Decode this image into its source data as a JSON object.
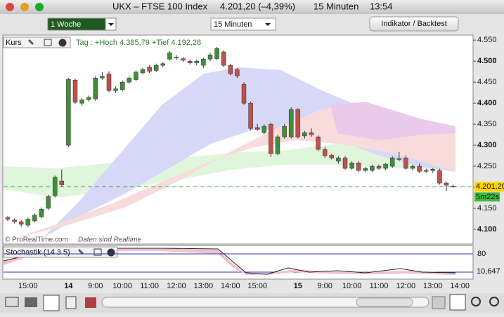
{
  "window": {
    "title": "UKX – FTSE 100 Index",
    "quote": "4.201,20 (–4,39%)",
    "interval": "15 Minuten",
    "time": "13:54"
  },
  "toolbar": {
    "period": "1 Woche",
    "interval": "15 Minuten",
    "button": "Indikator / Backtest"
  },
  "chart": {
    "type": "candlestick",
    "panel": "Kurs",
    "day_info": "Tag : +Hoch 4.385,79 +Tief 4.192,28",
    "ylim": [
      4065,
      4562
    ],
    "yticks": [
      {
        "value": 4550,
        "label": "4.550"
      },
      {
        "value": 4500,
        "label": "4.500"
      },
      {
        "value": 4450,
        "label": "4.450"
      },
      {
        "value": 4400,
        "label": "4.400"
      },
      {
        "value": 4350,
        "label": "4.350"
      },
      {
        "value": 4300,
        "label": "4.300"
      },
      {
        "value": 4250,
        "label": "4.250"
      },
      {
        "value": 4200,
        "label": "4.200"
      },
      {
        "value": 4150,
        "label": "4.150"
      },
      {
        "value": 4100,
        "label": "4.100"
      }
    ],
    "last_price": {
      "value": 4201.2,
      "label": "4.201,20"
    },
    "countdown": "5m22s",
    "up_color": "#3f8f3a",
    "down_color": "#c0504d",
    "candles": [
      [
        4128,
        4132,
        4120,
        4124
      ],
      [
        4122,
        4126,
        4114,
        4118
      ],
      [
        4118,
        4122,
        4106,
        4112
      ],
      [
        4110,
        4128,
        4106,
        4124
      ],
      [
        4120,
        4138,
        4116,
        4134
      ],
      [
        4130,
        4152,
        4126,
        4148
      ],
      [
        4150,
        4182,
        4146,
        4178
      ],
      [
        4180,
        4228,
        4176,
        4224
      ],
      [
        4215,
        4242,
        4202,
        4206
      ],
      [
        4300,
        4460,
        4296,
        4457
      ],
      [
        4455,
        4458,
        4398,
        4402
      ],
      [
        4400,
        4412,
        4394,
        4408
      ],
      [
        4408,
        4418,
        4404,
        4414
      ],
      [
        4410,
        4464,
        4406,
        4460
      ],
      [
        4460,
        4474,
        4456,
        4464
      ],
      [
        4470,
        4476,
        4426,
        4430
      ],
      [
        4430,
        4440,
        4424,
        4434
      ],
      [
        4432,
        4454,
        4428,
        4450
      ],
      [
        4450,
        4464,
        4446,
        4460
      ],
      [
        4456,
        4478,
        4452,
        4474
      ],
      [
        4472,
        4484,
        4468,
        4480
      ],
      [
        4486,
        4490,
        4472,
        4476
      ],
      [
        4478,
        4494,
        4474,
        4490
      ],
      [
        4490,
        4498,
        4486,
        4494
      ],
      [
        4505,
        4524,
        4502,
        4520
      ],
      [
        4508,
        4514,
        4502,
        4510
      ],
      [
        4506,
        4510,
        4498,
        4502
      ],
      [
        4500,
        4504,
        4492,
        4496
      ],
      [
        4496,
        4504,
        4490,
        4500
      ],
      [
        4490,
        4508,
        4484,
        4505
      ],
      [
        4505,
        4520,
        4500,
        4515
      ],
      [
        4506,
        4534,
        4502,
        4530
      ],
      [
        4522,
        4526,
        4486,
        4490
      ],
      [
        4490,
        4494,
        4466,
        4470
      ],
      [
        4480,
        4484,
        4460,
        4465
      ],
      [
        4445,
        4450,
        4396,
        4400
      ],
      [
        4400,
        4404,
        4336,
        4340
      ],
      [
        4342,
        4350,
        4334,
        4338
      ],
      [
        4330,
        4350,
        4326,
        4345
      ],
      [
        4350,
        4354,
        4272,
        4280
      ],
      [
        4280,
        4324,
        4276,
        4320
      ],
      [
        4320,
        4350,
        4316,
        4345
      ],
      [
        4320,
        4390,
        4316,
        4385
      ],
      [
        4385,
        4388,
        4316,
        4320
      ],
      [
        4322,
        4334,
        4316,
        4330
      ],
      [
        4330,
        4340,
        4320,
        4325
      ],
      [
        4320,
        4324,
        4286,
        4290
      ],
      [
        4290,
        4296,
        4270,
        4275
      ],
      [
        4276,
        4280,
        4266,
        4270
      ],
      [
        4262,
        4274,
        4256,
        4270
      ],
      [
        4270,
        4274,
        4242,
        4245
      ],
      [
        4245,
        4262,
        4242,
        4258
      ],
      [
        4258,
        4262,
        4236,
        4240
      ],
      [
        4240,
        4248,
        4236,
        4245
      ],
      [
        4240,
        4254,
        4236,
        4250
      ],
      [
        4250,
        4254,
        4242,
        4245
      ],
      [
        4245,
        4258,
        4240,
        4255
      ],
      [
        4250,
        4274,
        4246,
        4270
      ],
      [
        4266,
        4284,
        4262,
        4268
      ],
      [
        4270,
        4276,
        4242,
        4245
      ],
      [
        4245,
        4254,
        4240,
        4250
      ],
      [
        4250,
        4256,
        4234,
        4238
      ],
      [
        4238,
        4244,
        4234,
        4240
      ],
      [
        4240,
        4246,
        4234,
        4243
      ],
      [
        4240,
        4244,
        4206,
        4210
      ],
      [
        4210,
        4214,
        4192,
        4205
      ],
      [
        4203,
        4206,
        4199,
        4201
      ]
    ],
    "x_labels": [
      "15:00",
      "14",
      "9:00",
      "10:00",
      "11:00",
      "12:00",
      "13:00",
      "14:00",
      "15:00",
      "15",
      "9:00",
      "10:00",
      "11:00",
      "12:00",
      "13:00",
      "14:00"
    ],
    "watermark": "© ProRealTime.com",
    "watermark_note": "Daten sind Realtime"
  },
  "indicator": {
    "name": "Stochastik (14 3 5)",
    "level": 80,
    "value_label": "10,647"
  }
}
